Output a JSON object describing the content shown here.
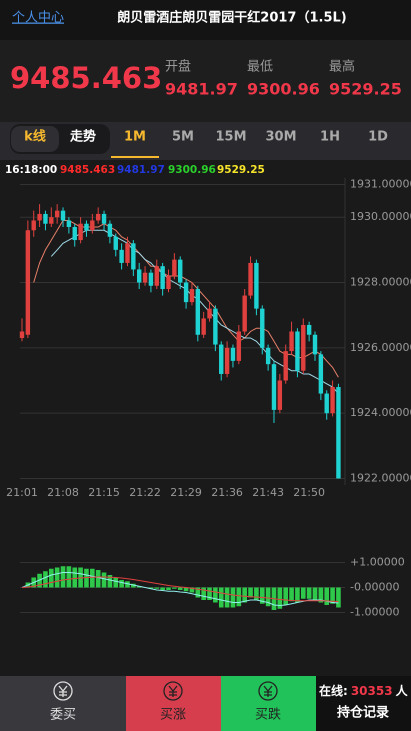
{
  "header": {
    "link": "个人中心",
    "title": "朗贝雷酒庄朗贝雷园干红2017（1.5L)"
  },
  "quote": {
    "price": "9485.463",
    "stats": [
      {
        "label": "开盘",
        "value": "9481.97"
      },
      {
        "label": "最低",
        "value": "9300.96"
      },
      {
        "label": "最高",
        "value": "9529.25"
      }
    ]
  },
  "tabs": [
    {
      "label": "k线",
      "active": true
    },
    {
      "label": "走势",
      "active": false
    },
    {
      "label": "1M",
      "active": true
    },
    {
      "label": "5M",
      "active": false
    },
    {
      "label": "15M",
      "active": false
    },
    {
      "label": "30M",
      "active": false
    },
    {
      "label": "1H",
      "active": false
    },
    {
      "label": "1D",
      "active": false
    }
  ],
  "info": [
    {
      "text": "16:18:00",
      "color": "#ffffff"
    },
    {
      "text": "9485.463",
      "color": "#ff2a2a"
    },
    {
      "text": "9481.97",
      "color": "#2238e0"
    },
    {
      "text": "9300.96",
      "color": "#2bd12b"
    },
    {
      "text": "9529.25",
      "color": "#f5e42a"
    }
  ],
  "footer": {
    "buttons": [
      "委买",
      "买涨",
      "买跌"
    ],
    "online_label": "在线:",
    "online_count": "30353",
    "online_unit": "人",
    "positions": "持仓记录"
  },
  "chart_data": [
    {
      "type": "candlestick",
      "up_color": "#e0413f",
      "down_color": "#1fd3d3",
      "grid": true,
      "categories": [
        "21:01",
        null,
        null,
        null,
        null,
        null,
        null,
        "21:08",
        null,
        null,
        null,
        null,
        null,
        null,
        "21:15",
        null,
        null,
        null,
        null,
        null,
        null,
        "21:22",
        null,
        null,
        null,
        null,
        null,
        null,
        "21:29",
        null,
        null,
        null,
        null,
        null,
        null,
        "21:36",
        null,
        null,
        null,
        null,
        null,
        null,
        "21:43",
        null,
        null,
        null,
        null,
        null,
        null,
        "21:50",
        null,
        null,
        null,
        null,
        null
      ],
      "candles": [
        [
          1926.3,
          1926.9,
          1926.2,
          1926.5
        ],
        [
          1926.4,
          1929.9,
          1926.3,
          1929.6
        ],
        [
          1929.6,
          1930.2,
          1929.4,
          1929.9
        ],
        [
          1929.9,
          1930.4,
          1929.7,
          1930.1
        ],
        [
          1930.1,
          1930.2,
          1929.6,
          1929.8
        ],
        [
          1929.8,
          1930.3,
          1929.7,
          1930.0
        ],
        [
          1930.0,
          1930.4,
          1929.8,
          1930.2
        ],
        [
          1930.2,
          1930.3,
          1929.7,
          1929.9
        ],
        [
          1929.9,
          1930.0,
          1929.5,
          1929.7
        ],
        [
          1929.7,
          1929.8,
          1929.1,
          1929.3
        ],
        [
          1929.3,
          1930.0,
          1929.2,
          1929.8
        ],
        [
          1929.8,
          1929.9,
          1929.4,
          1929.6
        ],
        [
          1929.6,
          1930.1,
          1929.5,
          1929.9
        ],
        [
          1929.9,
          1930.3,
          1929.8,
          1930.1
        ],
        [
          1930.1,
          1930.2,
          1929.6,
          1929.8
        ],
        [
          1929.8,
          1929.9,
          1929.2,
          1929.4
        ],
        [
          1929.4,
          1929.5,
          1928.8,
          1929.0
        ],
        [
          1929.0,
          1929.2,
          1928.4,
          1928.6
        ],
        [
          1928.6,
          1929.4,
          1928.5,
          1929.2
        ],
        [
          1929.2,
          1929.3,
          1928.2,
          1928.4
        ],
        [
          1928.4,
          1928.6,
          1927.8,
          1928.0
        ],
        [
          1928.0,
          1928.5,
          1927.9,
          1928.3
        ],
        [
          1928.3,
          1928.4,
          1927.7,
          1927.9
        ],
        [
          1927.9,
          1928.7,
          1927.8,
          1928.5
        ],
        [
          1928.5,
          1928.6,
          1927.6,
          1927.8
        ],
        [
          1927.8,
          1928.4,
          1927.7,
          1928.2
        ],
        [
          1928.2,
          1928.9,
          1928.1,
          1928.7
        ],
        [
          1928.7,
          1928.8,
          1927.8,
          1928.0
        ],
        [
          1928.0,
          1928.1,
          1927.2,
          1927.4
        ],
        [
          1927.4,
          1928.0,
          1927.3,
          1927.8
        ],
        [
          1927.8,
          1927.9,
          1926.2,
          1926.4
        ],
        [
          1926.4,
          1927.1,
          1926.3,
          1926.9
        ],
        [
          1926.9,
          1927.4,
          1926.8,
          1927.2
        ],
        [
          1927.2,
          1927.3,
          1925.9,
          1926.1
        ],
        [
          1926.1,
          1926.2,
          1925.0,
          1925.2
        ],
        [
          1925.2,
          1926.2,
          1925.1,
          1926.0
        ],
        [
          1926.0,
          1926.1,
          1925.4,
          1925.6
        ],
        [
          1925.6,
          1926.7,
          1925.5,
          1926.5
        ],
        [
          1926.5,
          1927.8,
          1926.4,
          1927.6
        ],
        [
          1927.6,
          1928.8,
          1927.5,
          1928.6
        ],
        [
          1928.6,
          1928.7,
          1927.0,
          1927.2
        ],
        [
          1927.2,
          1927.3,
          1925.8,
          1926.0
        ],
        [
          1926.0,
          1926.1,
          1925.3,
          1925.5
        ],
        [
          1925.5,
          1925.6,
          1923.7,
          1924.1
        ],
        [
          1924.1,
          1925.2,
          1924.0,
          1925.0
        ],
        [
          1925.0,
          1926.1,
          1924.9,
          1925.9
        ],
        [
          1925.9,
          1926.8,
          1925.8,
          1926.5
        ],
        [
          1926.5,
          1926.6,
          1925.1,
          1925.3
        ],
        [
          1925.3,
          1926.9,
          1925.2,
          1926.7
        ],
        [
          1926.7,
          1926.8,
          1926.2,
          1926.4
        ],
        [
          1926.4,
          1926.5,
          1925.6,
          1925.8
        ],
        [
          1925.8,
          1925.9,
          1924.4,
          1924.6
        ],
        [
          1924.6,
          1924.7,
          1923.8,
          1924.0
        ],
        [
          1924.0,
          1925.0,
          1923.9,
          1924.8
        ],
        [
          1924.8,
          1924.9,
          1922.0,
          1922.0
        ]
      ],
      "lines": [
        {
          "color": "#e8806a",
          "values": [
            null,
            null,
            1928.0,
            1928.6,
            1929.0,
            1929.3,
            1929.6,
            1929.9,
            1929.9,
            1929.8,
            1929.7,
            1929.7,
            1929.7,
            1929.7,
            1929.8,
            1929.7,
            1929.6,
            1929.4,
            1929.3,
            1929.1,
            1928.9,
            1928.7,
            1928.5,
            1928.5,
            1928.3,
            1928.2,
            1928.2,
            1928.2,
            1928.1,
            1928.0,
            1927.8,
            1927.6,
            1927.4,
            1927.2,
            1926.9,
            1926.6,
            1926.4,
            1926.2,
            1926.3,
            1926.5,
            1926.6,
            1926.6,
            1926.5,
            1926.2,
            1925.9,
            1925.8,
            1925.8,
            1925.7,
            1925.7,
            1925.8,
            1925.9,
            1925.8,
            1925.6,
            1925.4,
            1925.1
          ]
        },
        {
          "color": "#9fd8e8",
          "values": [
            null,
            null,
            null,
            null,
            null,
            1928.8,
            1929.0,
            1929.2,
            1929.3,
            1929.4,
            1929.5,
            1929.6,
            1929.6,
            1929.6,
            1929.6,
            1929.5,
            1929.4,
            1929.3,
            1929.2,
            1929.0,
            1928.9,
            1928.7,
            1928.6,
            1928.4,
            1928.3,
            1928.1,
            1928.0,
            1927.9,
            1927.8,
            1927.6,
            1927.5,
            1927.3,
            1927.1,
            1926.9,
            1926.7,
            1926.6,
            1926.5,
            1926.4,
            1926.3,
            1926.3,
            1926.2,
            1926.0,
            1925.8,
            1925.6,
            1925.5,
            1925.4,
            1925.3,
            1925.3,
            1925.2,
            1925.2,
            1925.1,
            1925.0,
            1924.9,
            1924.8,
            1924.6
          ]
        }
      ],
      "ylim": [
        1921.8,
        1931.2
      ],
      "yticks": [
        {
          "value": 1922,
          "label": "1922.00000"
        },
        {
          "value": 1924,
          "label": "1924.00000"
        },
        {
          "value": 1926,
          "label": "1926.00000"
        },
        {
          "value": 1928,
          "label": "1928.00000"
        },
        {
          "value": 1930,
          "label": "1930.00000"
        },
        {
          "value": 1931,
          "label": "1931.00000"
        }
      ]
    },
    {
      "type": "macd",
      "color": "#2ec84a",
      "values": [
        0.0,
        0.2,
        0.4,
        0.55,
        0.65,
        0.75,
        0.8,
        0.85,
        0.85,
        0.8,
        0.8,
        0.75,
        0.75,
        0.7,
        0.6,
        0.5,
        0.4,
        0.3,
        0.25,
        0.15,
        0.05,
        0,
        -0.05,
        -0.05,
        -0.1,
        -0.1,
        -0.05,
        -0.1,
        -0.15,
        -0.2,
        -0.4,
        -0.5,
        -0.5,
        -0.6,
        -0.8,
        -0.8,
        -0.8,
        -0.75,
        -0.6,
        -0.4,
        -0.5,
        -0.65,
        -0.75,
        -0.9,
        -0.85,
        -0.7,
        -0.55,
        -0.6,
        -0.45,
        -0.45,
        -0.5,
        -0.6,
        -0.7,
        -0.65,
        -0.8
      ],
      "lines": [
        {
          "color": "#8ff0ee",
          "values": [
            0,
            0.1,
            0.2,
            0.3,
            0.4,
            0.5,
            0.55,
            0.6,
            0.6,
            0.58,
            0.55,
            0.5,
            0.45,
            0.4,
            0.35,
            0.3,
            0.25,
            0.2,
            0.15,
            0.1,
            0.05,
            0,
            -0.05,
            -0.1,
            -0.12,
            -0.15,
            -0.15,
            -0.18,
            -0.2,
            -0.25,
            -0.3,
            -0.35,
            -0.4,
            -0.45,
            -0.5,
            -0.55,
            -0.6,
            -0.6,
            -0.55,
            -0.5,
            -0.5,
            -0.55,
            -0.6,
            -0.7,
            -0.72,
            -0.7,
            -0.65,
            -0.6,
            -0.55,
            -0.5,
            -0.5,
            -0.5,
            -0.55,
            -0.6,
            -0.62
          ]
        },
        {
          "color": "#e0413f",
          "values": [
            0,
            0.02,
            0.05,
            0.1,
            0.15,
            0.2,
            0.25,
            0.3,
            0.33,
            0.36,
            0.38,
            0.4,
            0.41,
            0.42,
            0.42,
            0.41,
            0.4,
            0.38,
            0.35,
            0.32,
            0.28,
            0.24,
            0.2,
            0.16,
            0.12,
            0.08,
            0.05,
            0.02,
            0,
            -0.03,
            -0.07,
            -0.1,
            -0.14,
            -0.18,
            -0.22,
            -0.26,
            -0.3,
            -0.33,
            -0.35,
            -0.37,
            -0.38,
            -0.4,
            -0.42,
            -0.45,
            -0.48,
            -0.5,
            -0.52,
            -0.53,
            -0.53,
            -0.53,
            -0.53,
            -0.53,
            -0.54,
            -0.55,
            -0.56
          ]
        }
      ],
      "ylim": [
        -2.1,
        1.9
      ],
      "yticks": [
        {
          "value": 1,
          "label": "+1.00000"
        },
        {
          "value": 0,
          "label": "-0.00000"
        },
        {
          "value": -1,
          "label": "-1.00000"
        }
      ]
    }
  ]
}
